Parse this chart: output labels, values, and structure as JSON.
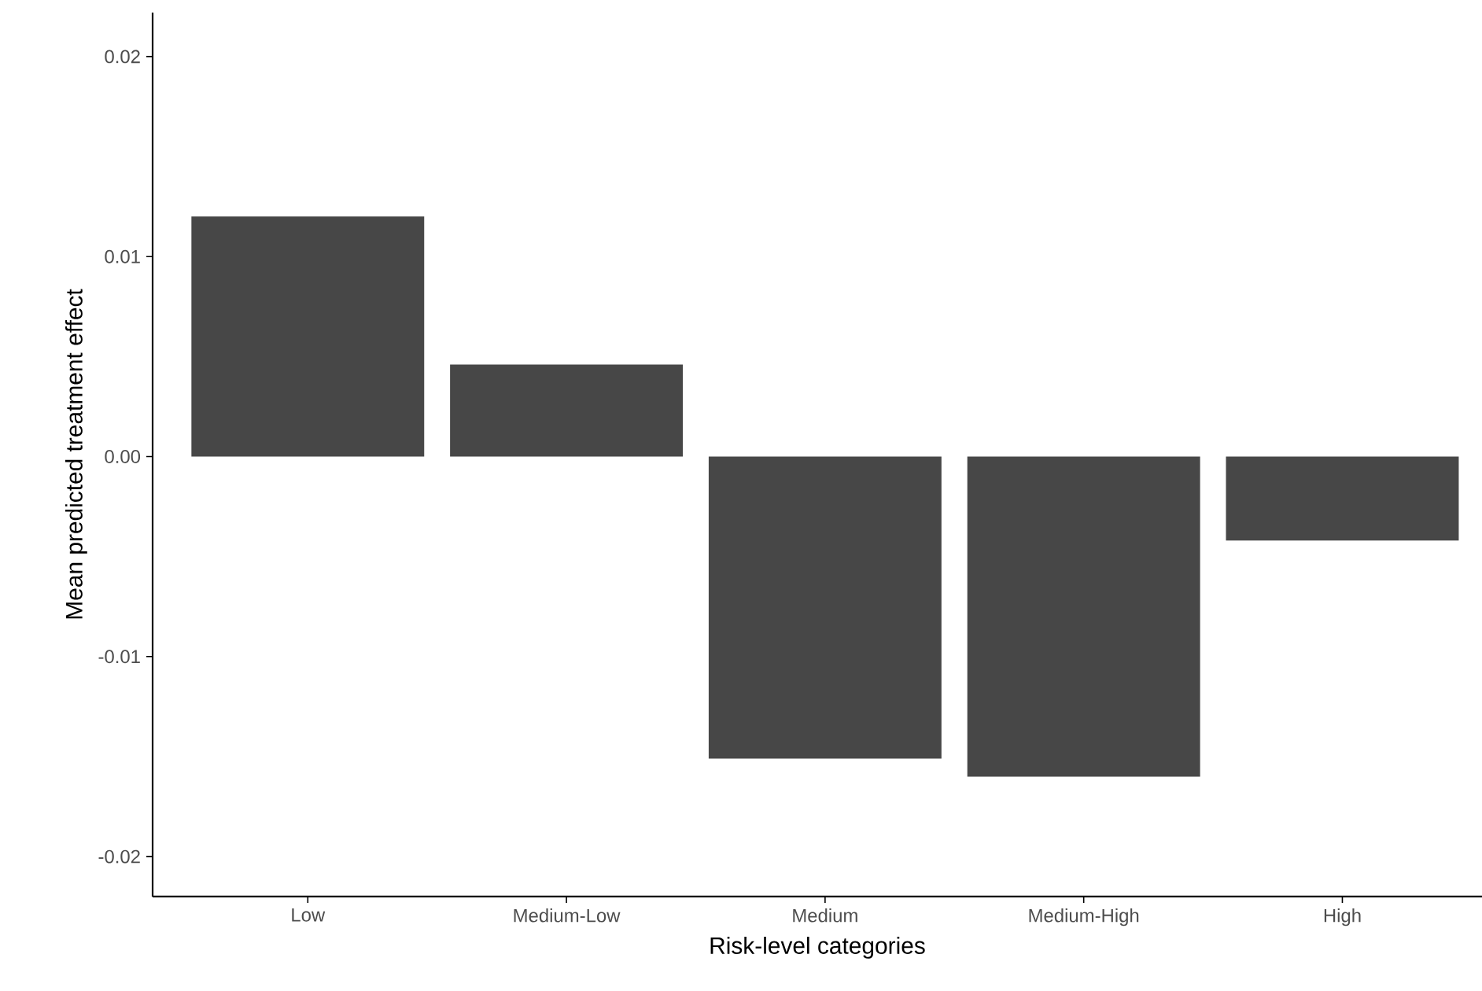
{
  "chart_data": {
    "type": "bar",
    "xlabel": "Risk-level categories",
    "ylabel": "Mean predicted treatment effect",
    "categories": [
      "Low",
      "Medium-Low",
      "Medium",
      "Medium-High",
      "High"
    ],
    "values": [
      0.012,
      0.0046,
      -0.0151,
      -0.016,
      -0.0042
    ],
    "color": "#474747",
    "ylim": [
      -0.022,
      0.0222
    ],
    "yticks": [
      {
        "value": -0.02,
        "label": "-0.02"
      },
      {
        "value": -0.01,
        "label": "-0.01"
      },
      {
        "value": 0,
        "label": "0.00"
      },
      {
        "value": 0.01,
        "label": "0.01"
      },
      {
        "value": 0.02,
        "label": "0.02"
      }
    ]
  }
}
